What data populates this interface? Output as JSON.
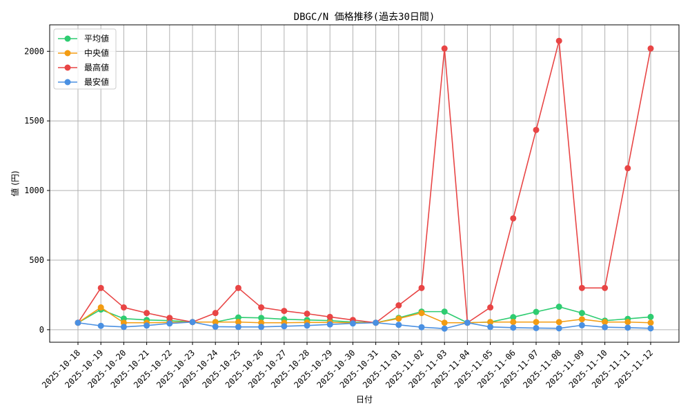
{
  "chart_data": {
    "type": "line",
    "title": "DBGC/N 価格推移(過去30日間)",
    "xlabel": "日付",
    "ylabel": "値 (円)",
    "ylim": [
      -90,
      2190
    ],
    "yticks": [
      0,
      500,
      1000,
      1500,
      2000
    ],
    "grid": true,
    "legend_position": "top-left",
    "categories": [
      "2025-10-18",
      "2025-10-19",
      "2025-10-20",
      "2025-10-21",
      "2025-10-22",
      "2025-10-23",
      "2025-10-24",
      "2025-10-25",
      "2025-10-26",
      "2025-10-27",
      "2025-10-28",
      "2025-10-29",
      "2025-10-30",
      "2025-10-31",
      "2025-11-01",
      "2025-11-02",
      "2025-11-03",
      "2025-11-04",
      "2025-11-05",
      "2025-11-06",
      "2025-11-07",
      "2025-11-08",
      "2025-11-09",
      "2025-11-10",
      "2025-11-11",
      "2025-11-12"
    ],
    "series": [
      {
        "name": "平均値",
        "color": "#2ecc71",
        "values": [
          50,
          145,
          80,
          70,
          65,
          55,
          55,
          88,
          85,
          75,
          70,
          65,
          55,
          50,
          85,
          130,
          130,
          50,
          55,
          90,
          128,
          165,
          120,
          65,
          78,
          92
        ]
      },
      {
        "name": "中央値",
        "color": "#f39c12",
        "values": [
          50,
          160,
          50,
          50,
          52,
          55,
          55,
          55,
          50,
          50,
          52,
          52,
          50,
          50,
          80,
          120,
          50,
          50,
          55,
          55,
          55,
          55,
          75,
          55,
          55,
          50
        ]
      },
      {
        "name": "最高値",
        "color": "#e84545",
        "values": [
          50,
          300,
          160,
          120,
          85,
          55,
          120,
          300,
          160,
          135,
          115,
          92,
          70,
          50,
          175,
          300,
          2020,
          50,
          160,
          800,
          1435,
          2075,
          300,
          300,
          1160,
          2020
        ]
      },
      {
        "name": "最安値",
        "color": "#4a90e2",
        "values": [
          50,
          28,
          20,
          30,
          45,
          55,
          22,
          20,
          20,
          25,
          30,
          38,
          45,
          50,
          35,
          18,
          8,
          50,
          20,
          15,
          12,
          10,
          32,
          18,
          15,
          10
        ]
      }
    ]
  }
}
